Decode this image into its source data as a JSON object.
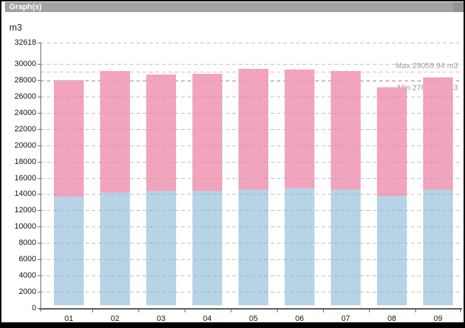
{
  "window": {
    "title": "Graph(s)"
  },
  "chart_data": {
    "type": "bar",
    "stacked": true,
    "title": "",
    "xlabel": "",
    "ylabel": "m3",
    "ylim": [
      0,
      32618
    ],
    "y_ticks": [
      0,
      2000,
      4000,
      6000,
      8000,
      10000,
      12000,
      14000,
      16000,
      18000,
      20000,
      22000,
      24000,
      26000,
      28000,
      30000,
      32618
    ],
    "categories": [
      "01",
      "02",
      "03",
      "04",
      "05",
      "06",
      "07",
      "08",
      "09"
    ],
    "series": [
      {
        "name": "series-1-blue",
        "color": "#B7D3E6",
        "values": [
          13670,
          14190,
          14370,
          14370,
          14580,
          14750,
          14540,
          13820,
          14540
        ]
      },
      {
        "name": "series-2-pink",
        "color": "#F2A3BD",
        "values": [
          14310,
          14900,
          14310,
          14400,
          14800,
          14570,
          14580,
          13260,
          13790
        ]
      }
    ],
    "totals": [
      27980,
      29090,
      28680,
      28770,
      29380,
      29320,
      29120,
      27080,
      28330
    ],
    "annotations": [
      {
        "name": "max-line",
        "label": "Max 29059.94 m3",
        "value": 29059.94,
        "side": "above",
        "color": "#F2AEC4"
      },
      {
        "name": "min-line",
        "label": "Min 27886.12 m3",
        "value": 27886.12,
        "side": "below",
        "color": "#F2AEC4"
      }
    ],
    "grid": "horizontal-dashed",
    "legend": "none"
  },
  "colors": {
    "titlebar_bg": "#9FA3A4",
    "titlebar_text": "#FFFFFF",
    "axis": "#666666",
    "gridline": "#C9CEDB",
    "tick_label": "#111111",
    "annotation_text": "#9B9B9B",
    "frame": "#000000",
    "bar_blue": "#B7D3E6",
    "bar_pink": "#F2A3BD"
  }
}
